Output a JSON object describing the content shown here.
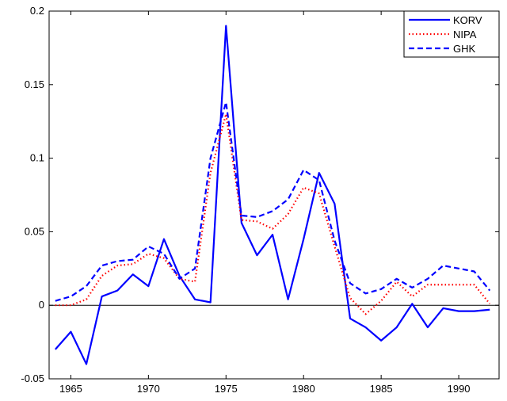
{
  "chart_data": {
    "type": "line",
    "x": [
      1964,
      1965,
      1966,
      1967,
      1968,
      1969,
      1970,
      1971,
      1972,
      1973,
      1974,
      1975,
      1976,
      1977,
      1978,
      1979,
      1980,
      1981,
      1982,
      1983,
      1984,
      1985,
      1986,
      1987,
      1988,
      1989,
      1990,
      1991,
      1992
    ],
    "series": [
      {
        "name": "KORV",
        "color": "#0000ff",
        "line_style": "solid",
        "values": [
          -0.03,
          -0.018,
          -0.04,
          0.006,
          0.01,
          0.021,
          0.013,
          0.045,
          0.02,
          0.004,
          0.002,
          0.19,
          0.056,
          0.034,
          0.048,
          0.004,
          0.045,
          0.09,
          0.069,
          -0.009,
          -0.015,
          -0.024,
          -0.015,
          0.001,
          -0.015,
          -0.002,
          -0.004,
          -0.004,
          -0.003
        ]
      },
      {
        "name": "NIPA",
        "color": "#ff0000",
        "line_style": "dotted",
        "values": [
          0.0,
          0.0,
          0.004,
          0.02,
          0.027,
          0.028,
          0.035,
          0.032,
          0.018,
          0.016,
          0.09,
          0.13,
          0.058,
          0.057,
          0.052,
          0.062,
          0.08,
          0.076,
          0.04,
          0.005,
          -0.006,
          0.003,
          0.016,
          0.006,
          0.014,
          0.014,
          0.014,
          0.014,
          0.001
        ]
      },
      {
        "name": "GHK",
        "color": "#0000ff",
        "line_style": "dashed",
        "values": [
          0.003,
          0.006,
          0.013,
          0.027,
          0.03,
          0.031,
          0.04,
          0.035,
          0.018,
          0.025,
          0.1,
          0.138,
          0.061,
          0.06,
          0.064,
          0.072,
          0.092,
          0.085,
          0.044,
          0.015,
          0.008,
          0.011,
          0.018,
          0.012,
          0.018,
          0.027,
          0.025,
          0.023,
          0.01
        ]
      }
    ],
    "xlim": [
      1963.6,
      1992.6
    ],
    "xticks": [
      1965,
      1970,
      1975,
      1980,
      1985,
      1990
    ],
    "ylim": [
      -0.05,
      0.2
    ],
    "yticks": [
      -0.05,
      0,
      0.05,
      0.1,
      0.15,
      0.2
    ],
    "zero_line": true,
    "legend": "top-right",
    "grid": false
  }
}
